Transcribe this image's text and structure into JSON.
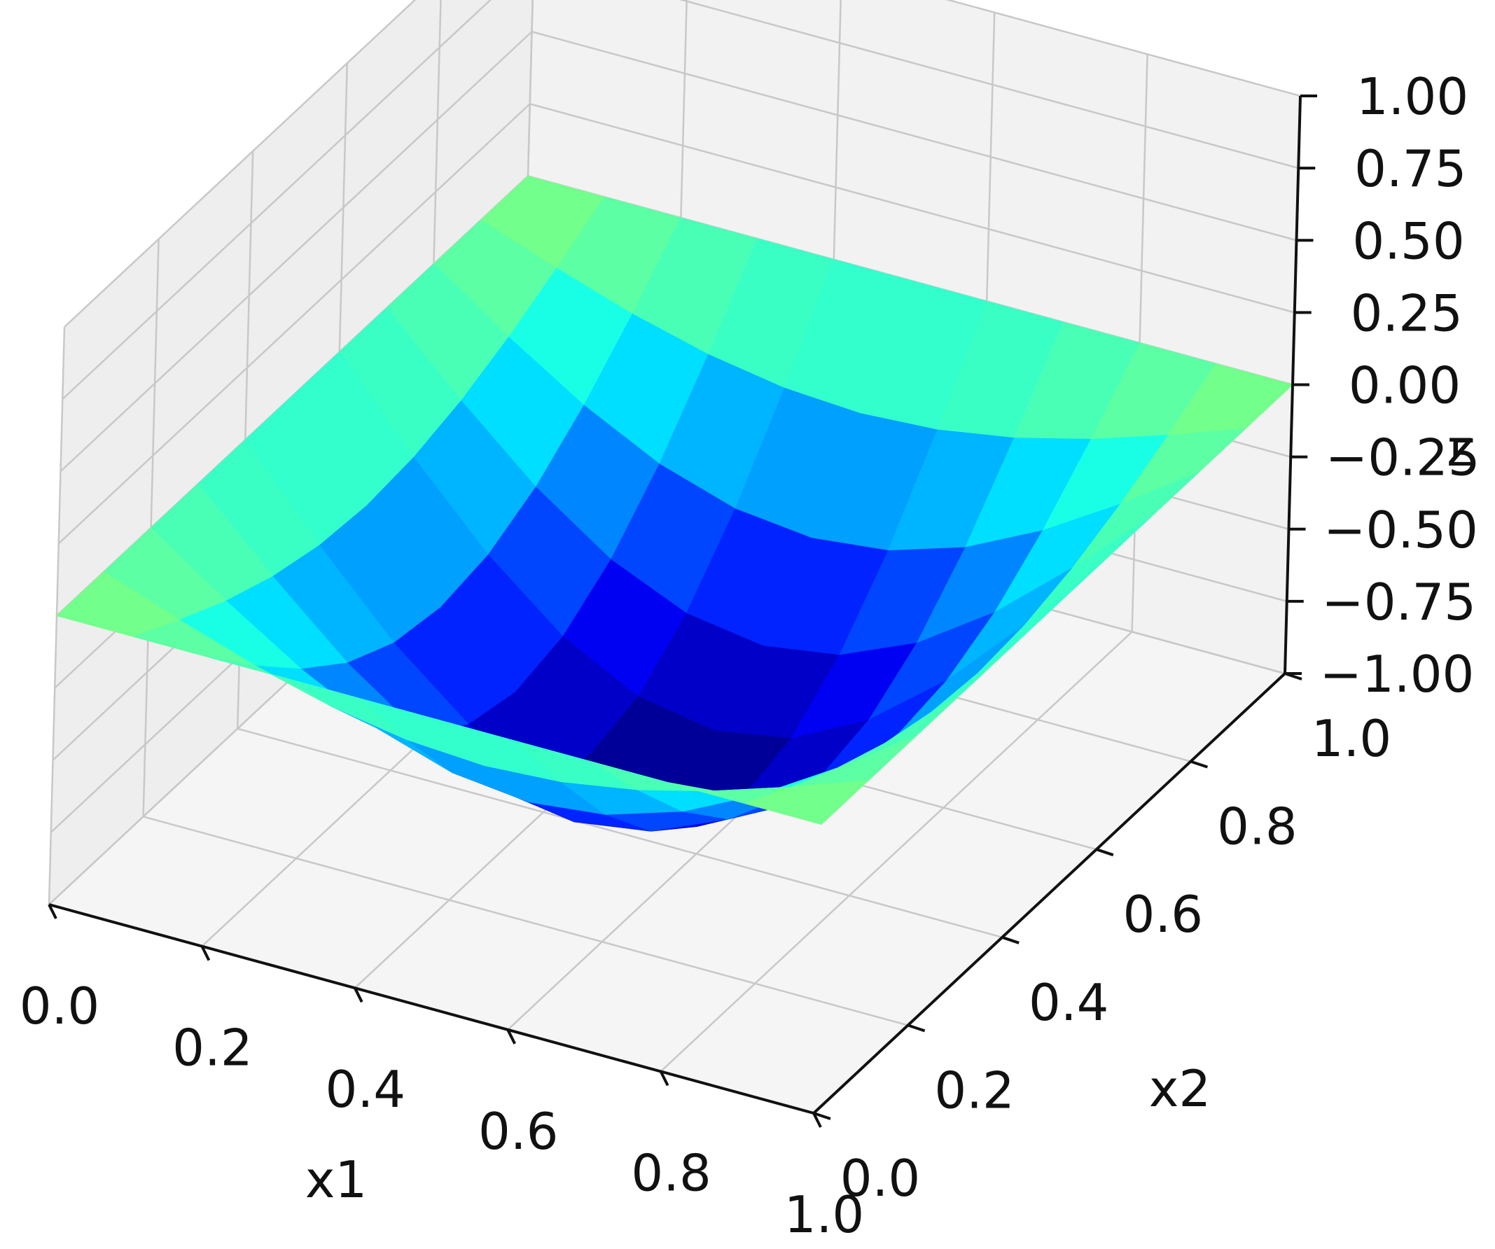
{
  "chart_data": {
    "type": "surface",
    "title": "",
    "xlabel": "x1",
    "ylabel": "x2",
    "zlabel": "z",
    "x_ticks": [
      "0.0",
      "0.2",
      "0.4",
      "0.6",
      "0.8",
      "1.0"
    ],
    "y_ticks": [
      "0.0",
      "0.2",
      "0.4",
      "0.6",
      "0.8",
      "1.0"
    ],
    "z_ticks": [
      "−1.00",
      "−0.75",
      "−0.50",
      "−0.25",
      "0.00",
      "0.25",
      "0.50",
      "0.75",
      "1.00"
    ],
    "xlim": [
      0,
      1
    ],
    "ylim": [
      0,
      1
    ],
    "zlim": [
      -1,
      1
    ],
    "grid": true,
    "colormap": "jet",
    "x": [
      0.0,
      0.1,
      0.2,
      0.3,
      0.4,
      0.5,
      0.6,
      0.7,
      0.8,
      0.9,
      1.0
    ],
    "y": [
      0.0,
      0.1,
      0.2,
      0.3,
      0.4,
      0.5,
      0.6,
      0.7,
      0.8,
      0.9,
      1.0
    ],
    "z": [
      [
        0.0,
        0.0,
        0.0,
        0.0,
        0.0,
        0.0,
        0.0,
        0.0,
        0.0,
        0.0,
        0.0
      ],
      [
        0.0,
        -0.095,
        -0.181,
        -0.249,
        -0.293,
        -0.309,
        -0.293,
        -0.249,
        -0.181,
        -0.095,
        0.0
      ],
      [
        0.0,
        -0.181,
        -0.345,
        -0.476,
        -0.559,
        -0.588,
        -0.559,
        -0.476,
        -0.345,
        -0.181,
        0.0
      ],
      [
        0.0,
        -0.249,
        -0.476,
        -0.655,
        -0.769,
        -0.809,
        -0.769,
        -0.655,
        -0.476,
        -0.249,
        0.0
      ],
      [
        0.0,
        -0.293,
        -0.559,
        -0.769,
        -0.905,
        -0.951,
        -0.905,
        -0.769,
        -0.559,
        -0.293,
        0.0
      ],
      [
        0.0,
        -0.309,
        -0.588,
        -0.809,
        -0.951,
        -1.0,
        -0.951,
        -0.809,
        -0.588,
        -0.309,
        0.0
      ],
      [
        0.0,
        -0.293,
        -0.559,
        -0.769,
        -0.905,
        -0.951,
        -0.905,
        -0.769,
        -0.559,
        -0.293,
        0.0
      ],
      [
        0.0,
        -0.249,
        -0.476,
        -0.655,
        -0.769,
        -0.809,
        -0.769,
        -0.655,
        -0.476,
        -0.249,
        0.0
      ],
      [
        0.0,
        -0.181,
        -0.345,
        -0.476,
        -0.559,
        -0.588,
        -0.559,
        -0.476,
        -0.345,
        -0.181,
        0.0
      ],
      [
        0.0,
        -0.095,
        -0.181,
        -0.249,
        -0.293,
        -0.309,
        -0.293,
        -0.249,
        -0.181,
        -0.095,
        0.0
      ],
      [
        0.0,
        0.0,
        0.0,
        0.0,
        0.0,
        0.0,
        0.0,
        0.0,
        0.0,
        0.0,
        0.0
      ]
    ],
    "z_note_rows": "rows indexed by x1 (x), columns by x2 (y)"
  },
  "colors": {
    "pane_left": "#eeeeee",
    "pane_back": "#f2f2f2",
    "pane_floor": "#f5f5f5",
    "gridline": "#c8c8c8",
    "axis_line": "#111111"
  }
}
